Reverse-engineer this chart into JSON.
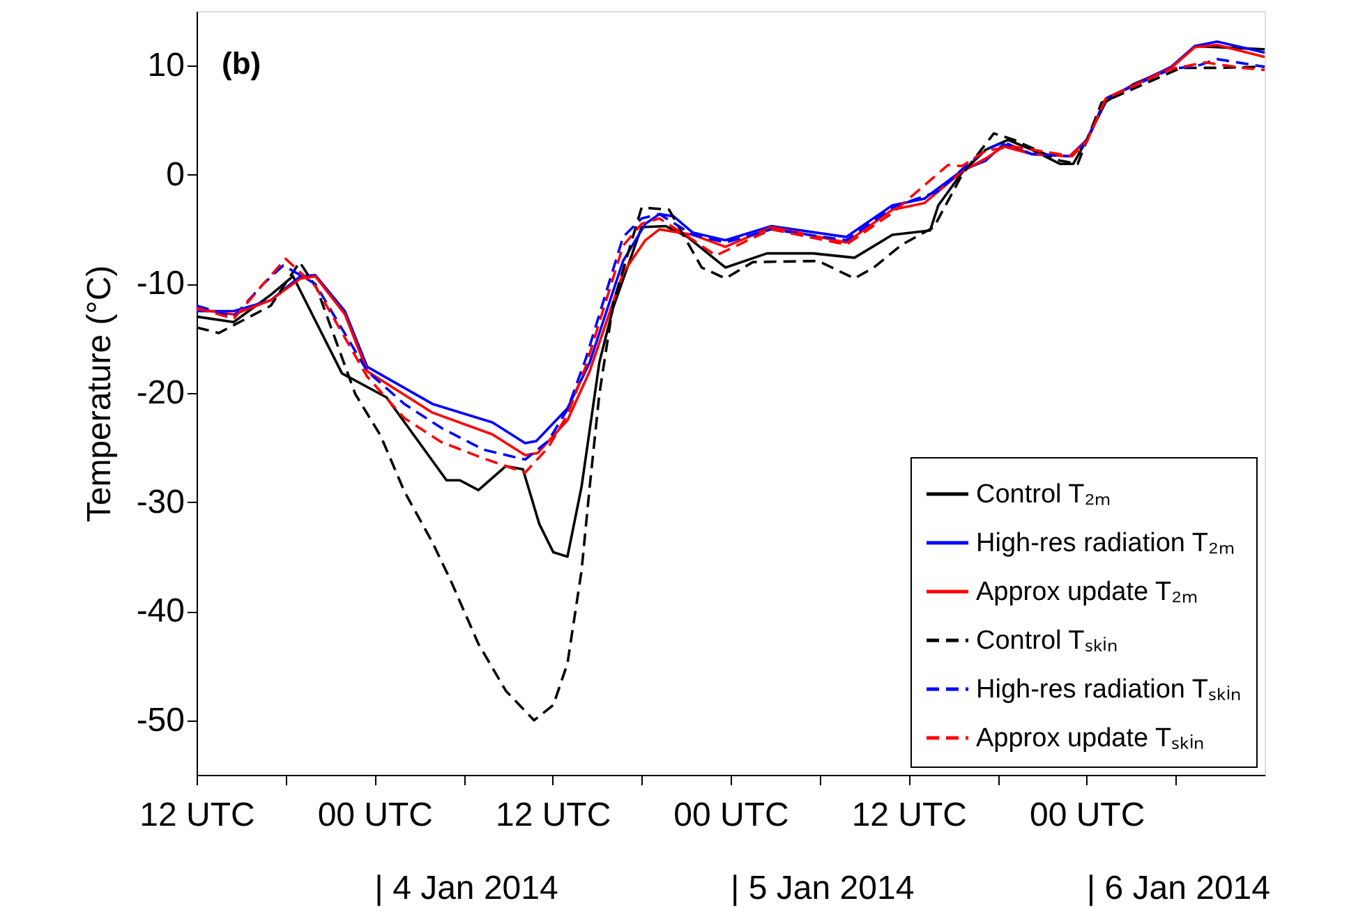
{
  "chart_data": {
    "type": "line",
    "ylabel": "Temperature (°C)",
    "xlim": [
      "2014-01-03T12:00",
      "2014-01-06T12:00"
    ],
    "ylim": [
      -55,
      15
    ],
    "yticks": [
      -50,
      -40,
      -30,
      -20,
      -10,
      0,
      10
    ],
    "xticks": [
      {
        "value": "2014-01-03T12:00",
        "label": "12 UTC"
      },
      {
        "value": "2014-01-03T18:00",
        "label": null
      },
      {
        "value": "2014-01-04T00:00",
        "label": "00 UTC"
      },
      {
        "value": "2014-01-04T06:00",
        "label": null
      },
      {
        "value": "2014-01-04T12:00",
        "label": "12 UTC"
      },
      {
        "value": "2014-01-04T18:00",
        "label": null
      },
      {
        "value": "2014-01-05T00:00",
        "label": "00 UTC"
      },
      {
        "value": "2014-01-05T06:00",
        "label": null
      },
      {
        "value": "2014-01-05T12:00",
        "label": "12 UTC"
      },
      {
        "value": "2014-01-05T18:00",
        "label": null
      },
      {
        "value": "2014-01-06T00:00",
        "label": "00 UTC"
      },
      {
        "value": "2014-01-06T06:00",
        "label": null
      }
    ],
    "grid": false,
    "legend": "bottom right",
    "marker": "none",
    "annotations": [
      "(b)",
      "| 4 Jan 2014",
      "| 5 Jan 2014",
      "| 6 Jan 2014"
    ],
    "series": [
      {
        "name": "Control T₂ₘ",
        "color": "#000000",
        "line_style": "solid",
        "x": [
          "2014-01-03T12:00",
          "2014-01-03T14:30",
          "2014-01-03T17:00",
          "2014-01-03T18:30",
          "2014-01-03T21:48",
          "2014-01-04T00:48",
          "2014-01-04T04:51",
          "2014-01-04T05:45",
          "2014-01-04T07:00",
          "2014-01-04T08:51",
          "2014-01-04T10:00",
          "2014-01-04T11:06",
          "2014-01-04T12:03",
          "2014-01-04T13:00",
          "2014-01-04T13:57",
          "2014-01-04T15:09",
          "2014-01-04T16:06",
          "2014-01-04T18:00",
          "2014-01-04T19:36",
          "2014-01-04T21:06",
          "2014-01-04T23:39",
          "2014-01-05T02:27",
          "2014-01-05T05:33",
          "2014-01-05T08:21",
          "2014-01-05T10:54",
          "2014-01-05T13:27",
          "2014-01-05T14:00",
          "2014-01-05T15:36",
          "2014-01-05T17:12",
          "2014-01-05T18:42",
          "2014-01-05T20:18",
          "2014-01-05T22:12",
          "2014-01-05T23:06",
          "2014-01-06T00:00",
          "2014-01-06T01:18",
          "2014-01-06T03:09",
          "2014-01-06T05:42",
          "2014-01-06T07:18",
          "2014-01-06T08:48",
          "2014-01-06T12:00"
        ],
        "values": [
          -13,
          -13.5,
          -11,
          -9.3,
          -18.2,
          -20.4,
          -28,
          -28,
          -28.9,
          -26.7,
          -27,
          -32,
          -34.6,
          -35,
          -28.6,
          -17.2,
          -12.1,
          -4.8,
          -4.7,
          -5.7,
          -8.5,
          -7.2,
          -7.2,
          -7.6,
          -5.5,
          -5.1,
          -2.8,
          0.2,
          2.3,
          3.2,
          2.3,
          1,
          1,
          3.2,
          6.7,
          8.3,
          9.8,
          11.8,
          11.7,
          11.5
        ]
      },
      {
        "name": "High-res radiation T₂ₘ",
        "color": "#0000ff",
        "line_style": "solid",
        "x": [
          "2014-01-03T12:00",
          "2014-01-03T14:30",
          "2014-01-03T17:00",
          "2014-01-03T19:00",
          "2014-01-03T20:00",
          "2014-01-03T22:00",
          "2014-01-03T23:30",
          "2014-01-04T03:54",
          "2014-01-04T07:57",
          "2014-01-04T10:09",
          "2014-01-04T10:54",
          "2014-01-04T13:00",
          "2014-01-04T14:30",
          "2014-01-04T16:45",
          "2014-01-04T18:15",
          "2014-01-04T19:12",
          "2014-01-04T20:09",
          "2014-01-04T21:27",
          "2014-01-04T23:39",
          "2014-01-05T02:45",
          "2014-01-05T07:48",
          "2014-01-05T10:54",
          "2014-01-05T13:03",
          "2014-01-05T15:36",
          "2014-01-05T17:12",
          "2014-01-05T18:24",
          "2014-01-05T20:18",
          "2014-01-05T22:51",
          "2014-01-06T00:00",
          "2014-01-06T01:18",
          "2014-01-06T05:42",
          "2014-01-06T07:18",
          "2014-01-06T08:48",
          "2014-01-06T12:00"
        ],
        "values": [
          -12.5,
          -12.5,
          -11.5,
          -9.3,
          -9.2,
          -12.5,
          -17.6,
          -21,
          -22.7,
          -24.6,
          -24.4,
          -21.4,
          -17.2,
          -7.9,
          -4.5,
          -3.6,
          -3.8,
          -5.3,
          -6,
          -4.7,
          -5.7,
          -2.8,
          -2.2,
          0.4,
          1.3,
          2.8,
          1.9,
          1.7,
          3.2,
          7,
          9.9,
          11.8,
          12.2,
          11.2
        ]
      },
      {
        "name": "Approx update T₂ₘ",
        "color": "#ff0000",
        "line_style": "solid",
        "x": [
          "2014-01-03T12:00",
          "2014-01-03T14:30",
          "2014-01-03T17:00",
          "2014-01-03T19:00",
          "2014-01-03T20:00",
          "2014-01-03T22:00",
          "2014-01-03T23:30",
          "2014-01-04T03:54",
          "2014-01-04T07:57",
          "2014-01-04T10:09",
          "2014-01-04T11:00",
          "2014-01-04T13:00",
          "2014-01-04T14:30",
          "2014-01-04T16:45",
          "2014-01-04T18:15",
          "2014-01-04T19:12",
          "2014-01-04T21:27",
          "2014-01-04T23:39",
          "2014-01-05T02:45",
          "2014-01-05T07:48",
          "2014-01-05T10:54",
          "2014-01-05T13:03",
          "2014-01-05T15:36",
          "2014-01-05T17:12",
          "2014-01-05T18:24",
          "2014-01-05T20:18",
          "2014-01-05T22:51",
          "2014-01-06T00:00",
          "2014-01-06T01:18",
          "2014-01-06T05:42",
          "2014-01-06T07:18",
          "2014-01-06T08:48",
          "2014-01-06T12:00"
        ],
        "values": [
          -12.3,
          -12.8,
          -11.5,
          -9.5,
          -9.3,
          -12.8,
          -18,
          -21.8,
          -23.8,
          -25.7,
          -25.5,
          -22.5,
          -18,
          -9,
          -6,
          -5,
          -5.5,
          -6.6,
          -4.8,
          -6.2,
          -3.2,
          -2.6,
          0.3,
          1.5,
          2.6,
          1.9,
          1.7,
          3.1,
          7,
          9.8,
          11.7,
          11.9,
          10.8
        ]
      },
      {
        "name": "Control Tₛₖᵢₙ",
        "color": "#000000",
        "line_style": "dashed",
        "x": [
          "2014-01-03T12:00",
          "2014-01-03T13:30",
          "2014-01-03T17:00",
          "2014-01-03T18:57",
          "2014-01-03T20:06",
          "2014-01-03T22:42",
          "2014-01-04T00:24",
          "2014-01-04T02:00",
          "2014-01-04T03:54",
          "2014-01-04T05:06",
          "2014-01-04T07:00",
          "2014-01-04T08:51",
          "2014-01-04T10:45",
          "2014-01-04T12:03",
          "2014-01-04T13:00",
          "2014-01-04T13:57",
          "2014-01-04T14:30",
          "2014-01-04T15:09",
          "2014-01-04T16:06",
          "2014-01-04T18:00",
          "2014-01-04T19:51",
          "2014-01-04T22:03",
          "2014-01-04T23:39",
          "2014-01-05T01:30",
          "2014-01-05T05:54",
          "2014-01-05T08:21",
          "2014-01-05T09:39",
          "2014-01-05T11:33",
          "2014-01-05T13:42",
          "2014-01-05T15:36",
          "2014-01-05T17:45",
          "2014-01-05T19:06",
          "2014-01-05T22:12",
          "2014-01-05T23:24",
          "2014-01-06T01:00",
          "2014-01-06T06:21",
          "2014-01-06T08:48",
          "2014-01-06T12:00"
        ],
        "values": [
          -14,
          -14.5,
          -12,
          -8,
          -10.4,
          -20.1,
          -23.9,
          -29,
          -33.7,
          -37.1,
          -43,
          -47.3,
          -50,
          -48.6,
          -44.8,
          -36.3,
          -28.6,
          -20.1,
          -11.7,
          -3,
          -3.2,
          -8.5,
          -9.5,
          -8,
          -7.9,
          -9.5,
          -8.5,
          -6.4,
          -4.8,
          0,
          3.8,
          3.2,
          1.3,
          1,
          6.6,
          9.8,
          9.8,
          9.9
        ]
      },
      {
        "name": "High-res radiation Tₛₖᵢₙ",
        "color": "#0000ff",
        "line_style": "dashed",
        "x": [
          "2014-01-03T12:00",
          "2014-01-03T14:30",
          "2014-01-03T16:30",
          "2014-01-03T17:51",
          "2014-01-03T20:00",
          "2014-01-03T23:30",
          "2014-01-04T02:00",
          "2014-01-04T04:30",
          "2014-01-04T07:21",
          "2014-01-04T10:09",
          "2014-01-04T11:42",
          "2014-01-04T13:00",
          "2014-01-04T14:15",
          "2014-01-04T16:45",
          "2014-01-04T18:00",
          "2014-01-04T19:12",
          "2014-01-04T21:27",
          "2014-01-04T23:39",
          "2014-01-05T02:45",
          "2014-01-05T07:48",
          "2014-01-05T10:54",
          "2014-01-05T14:00",
          "2014-01-05T15:36",
          "2014-01-05T17:12",
          "2014-01-05T18:24",
          "2014-01-05T20:18",
          "2014-01-05T23:00",
          "2014-01-06T00:00",
          "2014-01-06T01:18",
          "2014-01-06T05:42",
          "2014-01-06T07:30",
          "2014-01-06T08:48",
          "2014-01-06T12:00"
        ],
        "values": [
          -12,
          -13,
          -10,
          -8.3,
          -10,
          -18,
          -21,
          -23.2,
          -25.2,
          -26.1,
          -24.4,
          -21.5,
          -16.8,
          -5.7,
          -4,
          -3.6,
          -5.5,
          -6.2,
          -5,
          -6,
          -3,
          -1.5,
          0.5,
          2.3,
          3,
          1.9,
          1.7,
          3,
          7,
          9.7,
          10,
          10.6,
          9.9
        ]
      },
      {
        "name": "Approx update Tₛₖᵢₙ",
        "color": "#ff0000",
        "line_style": "dashed",
        "x": [
          "2014-01-03T12:00",
          "2014-01-03T14:30",
          "2014-01-03T16:30",
          "2014-01-03T18:00",
          "2014-01-03T20:00",
          "2014-01-03T23:30",
          "2014-01-04T02:00",
          "2014-01-04T04:30",
          "2014-01-04T07:21",
          "2014-01-04T10:09",
          "2014-01-04T11:42",
          "2014-01-04T13:00",
          "2014-01-04T14:15",
          "2014-01-04T16:45",
          "2014-01-04T18:00",
          "2014-01-04T19:12",
          "2014-01-04T21:30",
          "2014-01-04T23:00",
          "2014-01-05T02:45",
          "2014-01-05T07:48",
          "2014-01-05T10:54",
          "2014-01-05T14:39",
          "2014-01-05T15:36",
          "2014-01-05T17:12",
          "2014-01-05T19:00",
          "2014-01-05T23:00",
          "2014-01-06T00:00",
          "2014-01-06T01:18",
          "2014-01-06T05:42",
          "2014-01-06T08:00",
          "2014-01-06T10:30",
          "2014-01-06T12:00"
        ],
        "values": [
          -12.2,
          -13.2,
          -10,
          -7.7,
          -10.2,
          -18.5,
          -22.3,
          -24.5,
          -26,
          -27.3,
          -25,
          -22,
          -17.5,
          -6.5,
          -4.5,
          -4,
          -6,
          -7.4,
          -5,
          -6.4,
          -3.5,
          0.9,
          0.8,
          2.2,
          2.6,
          1.7,
          3,
          7,
          9.7,
          10.3,
          9.8,
          9.6
        ]
      }
    ]
  }
}
